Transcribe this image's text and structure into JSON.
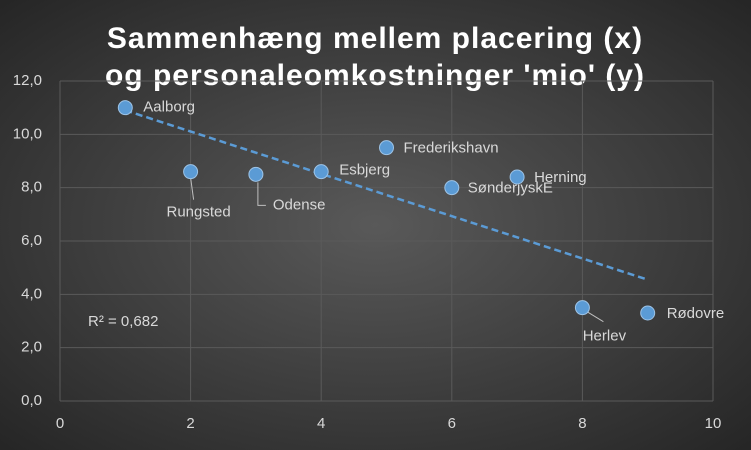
{
  "chart_data": {
    "type": "scatter",
    "title": [
      "Sammenhæng mellem placering (x)",
      "og personaleomkostninger 'mio' (y)"
    ],
    "x": [
      1,
      2,
      3,
      4,
      5,
      6,
      7,
      8,
      9
    ],
    "values": [
      11.0,
      8.6,
      8.5,
      8.6,
      9.5,
      8.0,
      8.4,
      3.5,
      3.3
    ],
    "labels": [
      "Aalborg",
      "Rungsted",
      "Odense",
      "Esbjerg",
      "Frederikshavn",
      "SønderjyskE",
      "Herning",
      "Herlev",
      "Rødovre"
    ],
    "color": "#5b9bd5",
    "trendline": {
      "x": [
        1,
        9
      ],
      "values": [
        10.9,
        4.55
      ],
      "color": "#5b9bd5"
    },
    "annotation": "R² = 0,682",
    "xlim": [
      0,
      10
    ],
    "xticks": [
      0,
      2,
      4,
      6,
      8,
      10
    ],
    "ylim": [
      0,
      12
    ],
    "yticks": [
      {
        "value": 0,
        "label": "0,0"
      },
      {
        "value": 2,
        "label": "2,0"
      },
      {
        "value": 4,
        "label": "4,0"
      },
      {
        "value": 6,
        "label": "6,0"
      },
      {
        "value": 8,
        "label": "8,0"
      },
      {
        "value": 10,
        "label": "10,0"
      },
      {
        "value": 12,
        "label": "12,0"
      }
    ],
    "grid": true
  }
}
